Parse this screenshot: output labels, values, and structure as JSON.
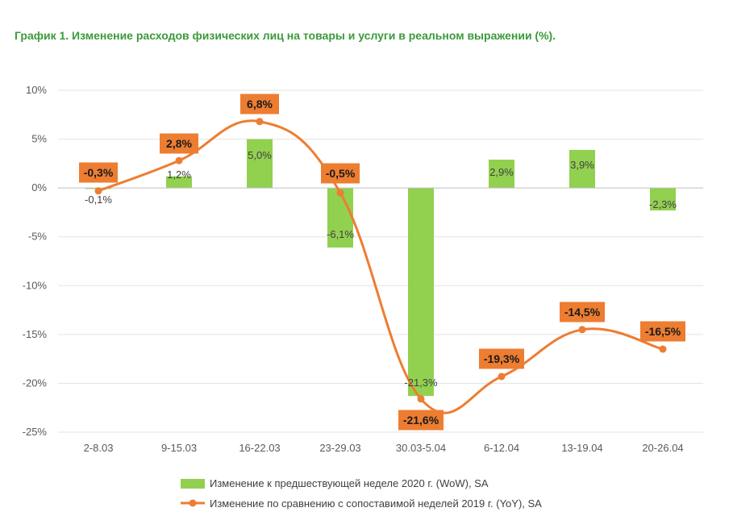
{
  "chart_data": {
    "type": "bar",
    "title": "График 1. Изменение расходов физических лиц на товары и услуги в реальном выражении (%).",
    "categories": [
      "2-8.03",
      "9-15.03",
      "16-22.03",
      "23-29.03",
      "30.03-5.04",
      "6-12.04",
      "13-19.04",
      "20-26.04"
    ],
    "ylim": [
      -25,
      10
    ],
    "yticks": [
      10,
      5,
      0,
      -5,
      -10,
      -15,
      -20,
      -25
    ],
    "ytick_labels": [
      "10%",
      "5%",
      "0%",
      "-5%",
      "-10%",
      "-15%",
      "-20%",
      "-25%"
    ],
    "grid": true,
    "legend_position": "bottom",
    "series": [
      {
        "name": "Изменение к предшествующей неделе 2020 г. (WoW), SA",
        "type": "bar",
        "color": "#92d050",
        "values": [
          -0.1,
          1.2,
          5.0,
          -6.1,
          -21.3,
          2.9,
          3.9,
          -2.3
        ],
        "labels": [
          "-0,1%",
          "1,2%",
          "5,0%",
          "-6,1%",
          "-21,3%",
          "2,9%",
          "3,9%",
          "-2,3%"
        ]
      },
      {
        "name": "Изменение по сравнению с сопоставимой неделей 2019 г. (YoY), SA",
        "type": "line",
        "color": "#ed7d31",
        "values": [
          -0.3,
          2.8,
          6.8,
          -0.5,
          -21.6,
          -19.3,
          -14.5,
          -16.5
        ],
        "labels": [
          "-0,3%",
          "2,8%",
          "6,8%",
          "-0,5%",
          "-21,6%",
          "-19,3%",
          "-14,5%",
          "-16,5%"
        ]
      }
    ]
  }
}
